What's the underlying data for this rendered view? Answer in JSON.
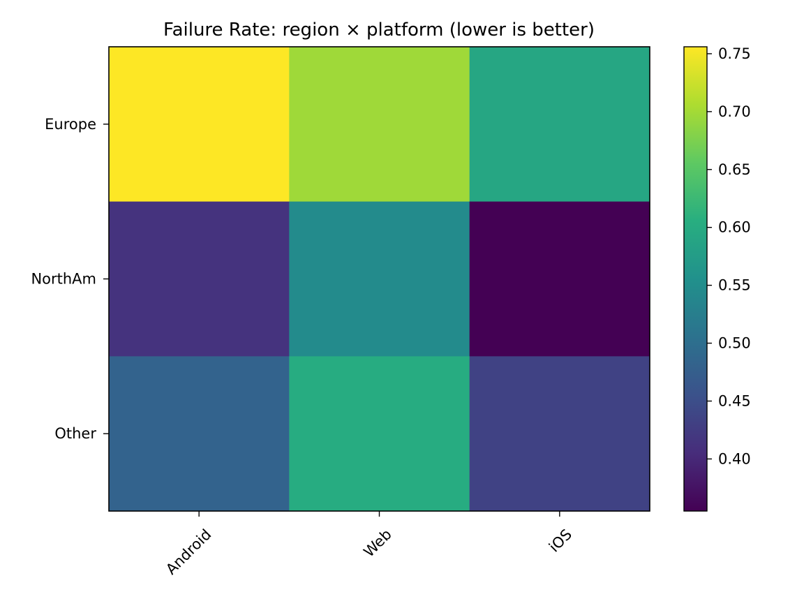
{
  "chart_data": {
    "type": "heatmap",
    "title": "Failure Rate: region × platform (lower is better)",
    "xlabel": "",
    "ylabel": "",
    "columns": [
      "Android",
      "Web",
      "iOS"
    ],
    "rows": [
      "Europe",
      "NorthAm",
      "Other"
    ],
    "values": [
      [
        0.756,
        0.697,
        0.592
      ],
      [
        0.413,
        0.546,
        0.355
      ],
      [
        0.482,
        0.602,
        0.434
      ]
    ],
    "colormap": "viridis",
    "colorbar": {
      "min": 0.355,
      "max": 0.756,
      "ticks": [
        "0.40",
        "0.45",
        "0.50",
        "0.55",
        "0.60",
        "0.65",
        "0.70",
        "0.75"
      ]
    },
    "grid": false,
    "legend": "colorbar-right"
  }
}
